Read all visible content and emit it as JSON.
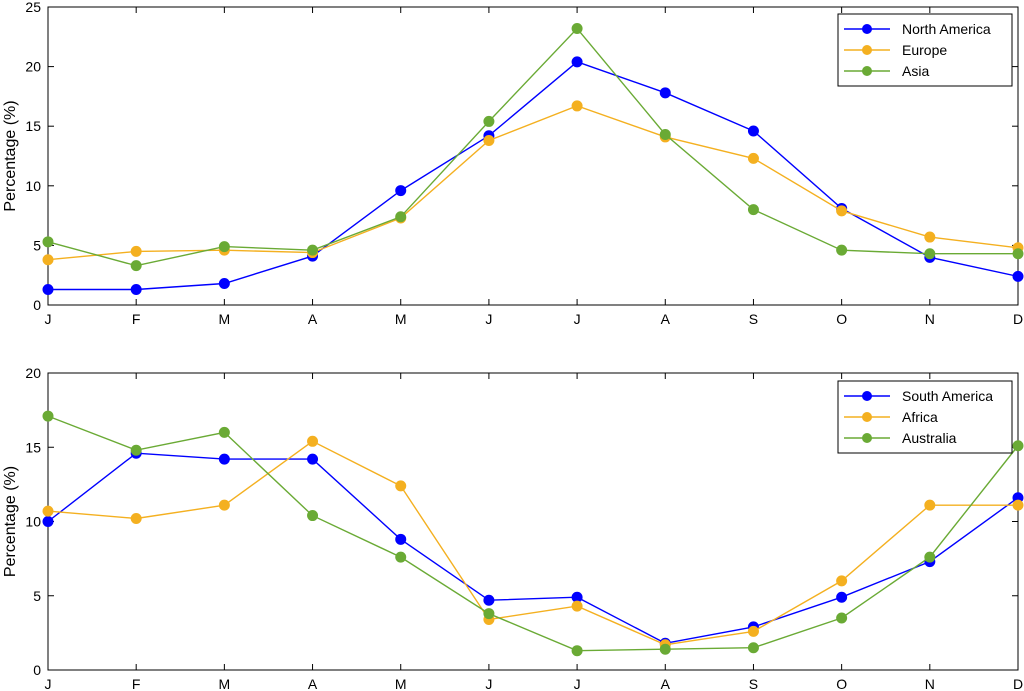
{
  "chart_data": [
    {
      "type": "line",
      "categories": [
        "J",
        "F",
        "M",
        "A",
        "M",
        "J",
        "J",
        "A",
        "S",
        "O",
        "N",
        "D"
      ],
      "ylabel": "Percentage (%)",
      "ylim": [
        0,
        25
      ],
      "yticks": [
        0,
        5,
        10,
        15,
        20,
        25
      ],
      "grid": false,
      "legend_position": "top-right",
      "series": [
        {
          "name": "North America",
          "color": "#0000ff",
          "values": [
            1.3,
            1.3,
            1.8,
            4.1,
            9.6,
            14.2,
            20.4,
            17.8,
            14.6,
            8.1,
            4.0,
            2.4
          ]
        },
        {
          "name": "Europe",
          "color": "#f4b020",
          "values": [
            3.8,
            4.5,
            4.6,
            4.4,
            7.3,
            13.8,
            16.7,
            14.1,
            12.3,
            7.9,
            5.7,
            4.8
          ]
        },
        {
          "name": "Asia",
          "color": "#6aaa35",
          "values": [
            5.3,
            3.3,
            4.9,
            4.6,
            7.4,
            15.4,
            23.2,
            14.3,
            8.0,
            4.6,
            4.3,
            4.3
          ]
        }
      ]
    },
    {
      "type": "line",
      "categories": [
        "J",
        "F",
        "M",
        "A",
        "M",
        "J",
        "J",
        "A",
        "S",
        "O",
        "N",
        "D"
      ],
      "ylabel": "Percentage (%)",
      "ylim": [
        0,
        20
      ],
      "yticks": [
        0,
        5,
        10,
        15,
        20
      ],
      "grid": false,
      "legend_position": "top-right",
      "series": [
        {
          "name": "South America",
          "color": "#0000ff",
          "values": [
            10.0,
            14.6,
            14.2,
            14.2,
            8.8,
            4.7,
            4.9,
            1.8,
            2.9,
            4.9,
            7.3,
            11.6
          ]
        },
        {
          "name": "Africa",
          "color": "#f4b020",
          "values": [
            10.7,
            10.2,
            11.1,
            15.4,
            12.4,
            3.4,
            4.3,
            1.7,
            2.6,
            6.0,
            11.1,
            11.1
          ]
        },
        {
          "name": "Australia",
          "color": "#6aaa35",
          "values": [
            17.1,
            14.8,
            16.0,
            10.4,
            7.6,
            3.8,
            1.3,
            1.4,
            1.5,
            3.5,
            7.6,
            15.1
          ]
        }
      ]
    }
  ]
}
